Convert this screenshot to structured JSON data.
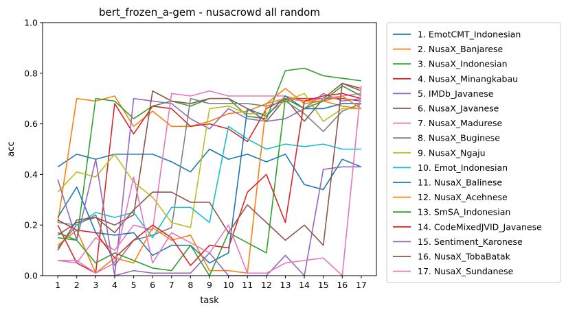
{
  "chart_data": {
    "type": "line",
    "title": "bert_frozen_a-gem - nusacrowd all random",
    "xlabel": "task",
    "ylabel": "acc",
    "x": [
      1,
      2,
      3,
      4,
      5,
      6,
      7,
      8,
      9,
      10,
      11,
      12,
      13,
      14,
      15,
      16,
      17
    ],
    "xlim": [
      0.2,
      17.8
    ],
    "ylim": [
      0.0,
      1.0
    ],
    "yticks": [
      0.0,
      0.2,
      0.4,
      0.6,
      0.8,
      1.0
    ],
    "legend_position": "outside-right",
    "series": [
      {
        "name": "1. EmotCMT_Indonesian",
        "color": "#1f77b4",
        "values": [
          0.43,
          0.48,
          0.46,
          0.48,
          0.48,
          0.48,
          0.45,
          0.41,
          0.5,
          0.46,
          0.48,
          0.45,
          0.48,
          0.36,
          0.34,
          0.46,
          0.43
        ]
      },
      {
        "name": "2. NusaX_Banjarese",
        "color": "#ff7f0e",
        "values": [
          0.21,
          0.7,
          0.69,
          0.71,
          0.59,
          0.65,
          0.59,
          0.59,
          0.61,
          0.64,
          0.65,
          0.68,
          0.74,
          0.68,
          0.69,
          0.67,
          0.66
        ]
      },
      {
        "name": "3. NusaX_Indonesian",
        "color": "#2ca02c",
        "values": [
          0.17,
          0.14,
          0.7,
          0.69,
          0.62,
          0.67,
          0.69,
          0.67,
          0.7,
          0.7,
          0.63,
          0.62,
          0.81,
          0.82,
          0.79,
          0.78,
          0.77
        ]
      },
      {
        "name": "4. NusaX_Minangkabau",
        "color": "#d62728",
        "values": [
          0.2,
          0.05,
          0.01,
          0.68,
          0.56,
          0.67,
          0.66,
          0.59,
          0.6,
          0.58,
          0.53,
          0.66,
          0.7,
          0.7,
          0.7,
          0.7,
          0.69
        ]
      },
      {
        "name": "5. IMDb_Javanese",
        "color": "#9467bd",
        "values": [
          0.0,
          0.0,
          0.0,
          0.0,
          0.7,
          0.69,
          0.68,
          0.62,
          0.58,
          0.66,
          0.62,
          0.61,
          0.62,
          0.66,
          0.72,
          0.69,
          0.7
        ]
      },
      {
        "name": "6. NusaX_Javanese",
        "color": "#8c564b",
        "values": [
          0.16,
          0.21,
          0.23,
          0.2,
          0.24,
          0.73,
          0.69,
          0.68,
          0.7,
          0.7,
          0.66,
          0.61,
          0.7,
          0.61,
          0.7,
          0.76,
          0.73
        ]
      },
      {
        "name": "7. NusaX_Madurese",
        "color": "#e377c2",
        "values": [
          0.06,
          0.05,
          0.15,
          0.1,
          0.2,
          0.18,
          0.72,
          0.71,
          0.73,
          0.71,
          0.71,
          0.71,
          0.71,
          0.69,
          0.7,
          0.71,
          0.72
        ]
      },
      {
        "name": "8. NusaX_Buginese",
        "color": "#7f7f7f",
        "values": [
          0.11,
          0.2,
          0.24,
          0.04,
          0.14,
          0.16,
          0.19,
          0.7,
          0.68,
          0.68,
          0.68,
          0.67,
          0.69,
          0.64,
          0.57,
          0.65,
          0.68
        ]
      },
      {
        "name": "9. NusaX_Ngaju",
        "color": "#bcbd22",
        "values": [
          0.33,
          0.41,
          0.39,
          0.48,
          0.37,
          0.31,
          0.21,
          0.19,
          0.66,
          0.67,
          0.64,
          0.64,
          0.69,
          0.72,
          0.61,
          0.66,
          0.66
        ]
      },
      {
        "name": "10. Emot_Indonesian",
        "color": "#17becf",
        "values": [
          0.21,
          0.2,
          0.25,
          0.23,
          0.25,
          0.15,
          0.27,
          0.27,
          0.21,
          0.59,
          0.54,
          0.5,
          0.52,
          0.51,
          0.52,
          0.5,
          0.5
        ]
      },
      {
        "name": "11. NusaX_Balinese",
        "color": "#1f77b4",
        "values": [
          0.23,
          0.35,
          0.17,
          0.16,
          0.17,
          0.08,
          0.12,
          0.12,
          0.05,
          0.09,
          0.66,
          0.63,
          0.71,
          0.66,
          0.66,
          0.68,
          0.68
        ]
      },
      {
        "name": "12. NusaX_Acehnese",
        "color": "#ff7f0e",
        "values": [
          0.12,
          0.18,
          0.01,
          0.07,
          0.05,
          0.19,
          0.14,
          0.16,
          0.02,
          0.02,
          0.01,
          0.68,
          0.7,
          0.69,
          0.69,
          0.71,
          0.66
        ]
      },
      {
        "name": "13. SmSA_Indonesian",
        "color": "#2ca02c",
        "values": [
          0.15,
          0.14,
          0.05,
          0.09,
          0.06,
          0.03,
          0.02,
          0.12,
          0.0,
          0.17,
          0.13,
          0.09,
          0.7,
          0.66,
          0.69,
          0.75,
          0.71
        ]
      },
      {
        "name": "14. CodeMixedJVID_Javanese",
        "color": "#d62728",
        "values": [
          0.22,
          0.18,
          0.17,
          0.07,
          0.14,
          0.2,
          0.15,
          0.04,
          0.12,
          0.11,
          0.33,
          0.4,
          0.21,
          0.69,
          0.71,
          0.72,
          0.7
        ]
      },
      {
        "name": "15. Sentiment_Karonese",
        "color": "#9467bd",
        "values": [
          0.38,
          0.14,
          0.46,
          0.0,
          0.02,
          0.01,
          0.01,
          0.01,
          0.09,
          0.0,
          0.0,
          0.0,
          0.08,
          0.0,
          0.42,
          0.43,
          0.43
        ]
      },
      {
        "name": "16. NusaX_TobaBatak",
        "color": "#8c564b",
        "values": [
          0.1,
          0.22,
          0.23,
          0.17,
          0.26,
          0.33,
          0.33,
          0.29,
          0.29,
          0.17,
          0.28,
          0.21,
          0.14,
          0.2,
          0.12,
          0.76,
          0.74
        ]
      },
      {
        "name": "17. NusaX_Sundanese",
        "color": "#e377c2",
        "values": [
          0.06,
          0.06,
          0.01,
          0.05,
          0.39,
          0.05,
          0.17,
          0.13,
          0.09,
          0.2,
          0.01,
          0.01,
          0.05,
          0.06,
          0.07,
          0.0,
          0.75
        ]
      }
    ]
  }
}
